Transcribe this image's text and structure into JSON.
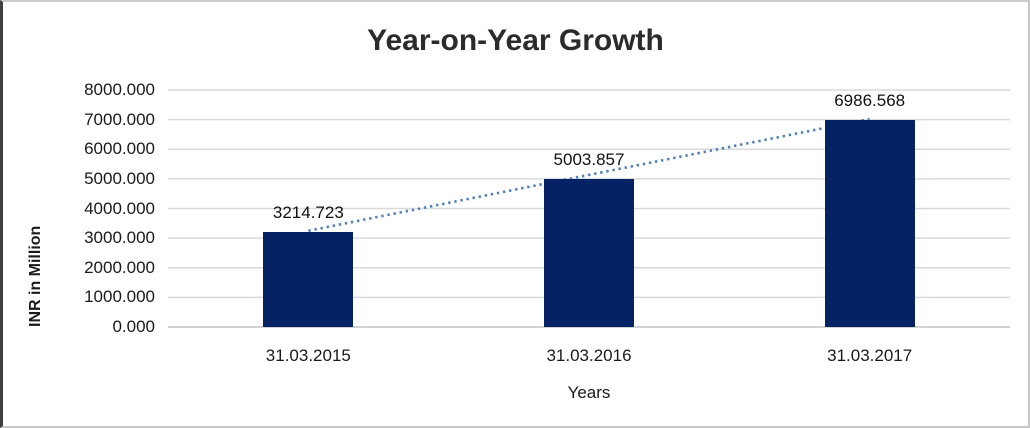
{
  "frame": {
    "background": "#ffffff",
    "border_color": "#cccccc",
    "left_edge_color": "#3f3f3f"
  },
  "chart_data": {
    "type": "bar",
    "title": "Year-on-Year Growth",
    "xlabel": "Years",
    "ylabel": "INR in Million",
    "categories": [
      "31.03.2015",
      "31.03.2016",
      "31.03.2017"
    ],
    "series": [
      {
        "name": "INR in Million",
        "values": [
          3214.723,
          5003.857,
          6986.568
        ]
      }
    ],
    "data_labels": [
      "3214.723",
      "5003.857",
      "6986.568"
    ],
    "ylim": [
      0,
      8000
    ],
    "ytick_step": 1000,
    "ytick_labels": [
      "0.000",
      "1000.000",
      "2000.000",
      "3000.000",
      "4000.000",
      "5000.000",
      "6000.000",
      "7000.000",
      "8000.000"
    ],
    "grid": true,
    "legend": "none",
    "colors": {
      "bar": "#042264",
      "gridline": "#d9d9d9",
      "baseline": "#c4c4c4",
      "axis_text": "#1a1a1a",
      "title_text": "#2b2b2b",
      "trendline": "#4f81bd"
    },
    "trendline": {
      "type": "linear",
      "style": "dotted"
    }
  }
}
